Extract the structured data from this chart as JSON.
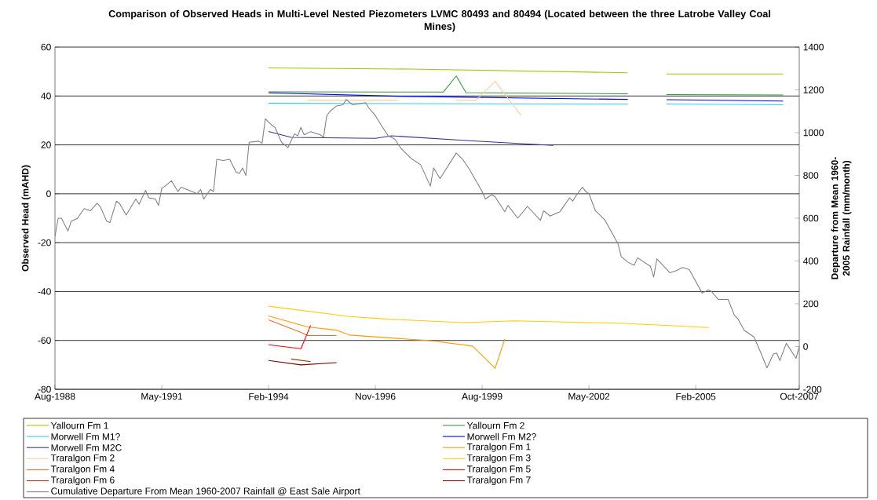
{
  "chart_data": {
    "type": "line",
    "title": "Comparison of Observed Heads in Multi-Level Nested Piezometers LVMC 80493 and 80494 (Located between the three Latrobe Valley Coal Mines)",
    "ylabel": "Observed Head (mAHD)",
    "y2label": "Departure from Mean 1960-2005 Rainfall (mm/month)",
    "xlim": [
      "1988-08",
      "2007-10"
    ],
    "xticks": [
      {
        "value": "1988-08",
        "label": "Aug-1988"
      },
      {
        "value": "1991-05",
        "label": "May-1991"
      },
      {
        "value": "1994-02",
        "label": "Feb-1994"
      },
      {
        "value": "1996-11",
        "label": "Nov-1996"
      },
      {
        "value": "1999-08",
        "label": "Aug-1999"
      },
      {
        "value": "2002-05",
        "label": "May-2002"
      },
      {
        "value": "2005-02",
        "label": "Feb-2005"
      },
      {
        "value": "2007-10",
        "label": "Oct-2007"
      }
    ],
    "ylim": [
      -80,
      60
    ],
    "yticks": [
      -80,
      -60,
      -40,
      -20,
      0,
      20,
      40,
      60
    ],
    "y2lim": [
      -200,
      1400
    ],
    "y2ticks": [
      -200,
      0,
      200,
      400,
      600,
      800,
      1000,
      1200,
      1400
    ],
    "grid": "y",
    "legend": "bottom",
    "series": [
      {
        "name": "Yallourn Fm 1",
        "color": "#99cc00",
        "x": [
          "1994-02",
          "1997-10",
          "2003-05",
          "2003-11",
          "2004-05",
          "2007-05"
        ],
        "values": [
          51.5,
          51,
          49.5,
          null,
          49,
          49
        ]
      },
      {
        "name": "Yallourn Fm 2",
        "color": "#339933",
        "x": [
          "1994-02",
          "1998-08",
          "1998-12",
          "1999-03",
          "2003-05",
          "2003-11",
          "2004-05",
          "2007-05"
        ],
        "values": [
          41.7,
          41.6,
          48.2,
          41.4,
          40.9,
          null,
          40.6,
          40.4
        ]
      },
      {
        "name": "Morwell Fm M1?",
        "color": "#33ccff",
        "x": [
          "1994-02",
          "2003-05",
          "2003-11",
          "2004-05",
          "2007-05"
        ],
        "values": [
          37,
          36.7,
          null,
          36.7,
          36.4
        ]
      },
      {
        "name": "Morwell Fm M2?",
        "color": "#0000ff",
        "x": [
          "1994-02",
          "1997-06",
          "2003-05",
          "2003-11",
          "2004-05",
          "2007-05"
        ],
        "values": [
          41.3,
          39.9,
          38.6,
          null,
          38.5,
          37.9
        ]
      },
      {
        "name": "Morwell Fm M2C",
        "color": "#333399",
        "x": [
          "1994-02",
          "1994-09",
          "1996-11",
          "1997-04",
          "1999-04",
          "2001-06"
        ],
        "values": [
          25.5,
          23.1,
          22.7,
          23.7,
          21.7,
          19.8
        ]
      },
      {
        "name": "Traralgon Fm 1",
        "color": "#ff9900",
        "x": [
          "1994-02",
          "1995-02",
          "1995-11",
          "1996-03",
          "1998-04",
          "1999-05",
          "1999-12",
          "2000-03"
        ],
        "values": [
          -50,
          -54.5,
          -55.8,
          -57.8,
          -60.1,
          -62.3,
          -71.4,
          -59.4
        ]
      },
      {
        "name": "Traralgon Fm 2",
        "color": "#ffcc99",
        "x": [
          "1995-02",
          "1997-06",
          "1998-03",
          "1998-12",
          "1999-06",
          "1999-12",
          "2000-08"
        ],
        "values": [
          38.2,
          38.2,
          null,
          38.2,
          38.2,
          46,
          32.1
        ]
      },
      {
        "name": "Traralgon Fm 3",
        "color": "#ffcc00",
        "x": [
          "1994-02",
          "1996-03",
          "1997-03",
          "1999-02",
          "2000-06",
          "2003-04",
          "2005-06"
        ],
        "values": [
          -46,
          -50.2,
          -51.3,
          -52.7,
          -52,
          -53,
          -54.7
        ]
      },
      {
        "name": "Traralgon Fm 4",
        "color": "#ff6633",
        "x": [
          "1994-02",
          "1994-12",
          "1995-02",
          "1995-11"
        ],
        "values": [
          -51.6,
          -56.7,
          -58,
          -58
        ]
      },
      {
        "name": "Traralgon Fm 5",
        "color": "#ff0000",
        "x": [
          "1994-02",
          "1994-12",
          "1995-03"
        ],
        "values": [
          -61.8,
          -63.4,
          -53.8
        ]
      },
      {
        "name": "Traralgon Fm 6",
        "color": "#993300",
        "x": [
          "1994-09",
          "1995-03"
        ],
        "values": [
          -67.6,
          -68.7
        ]
      },
      {
        "name": "Traralgon Fm 7",
        "color": "#800000",
        "x": [
          "1994-02",
          "1994-12",
          "1995-11"
        ],
        "values": [
          -68.2,
          -70,
          -69.1
        ]
      },
      {
        "name": "Cumulative Departure From Mean 1960-2007 Rainfall @ East Sale Airport",
        "color": "#808080",
        "axis": "y2",
        "x": [
          "1988-08",
          "1988-09",
          "1988-10",
          "1988-12",
          "1989-01",
          "1989-03",
          "1989-05",
          "1989-07",
          "1989-09",
          "1989-10",
          "1989-12",
          "1990-01",
          "1990-03",
          "1990-04",
          "1990-06",
          "1990-09",
          "1990-10",
          "1990-12",
          "1991-01",
          "1991-03",
          "1991-04",
          "1991-05",
          "1991-06",
          "1991-08",
          "1991-10",
          "1991-11",
          "1992-04",
          "1992-05",
          "1992-06",
          "1992-08",
          "1992-09",
          "1992-10",
          "1992-12",
          "1993-02",
          "1993-04",
          "1993-05",
          "1993-06",
          "1993-07",
          "1993-08",
          "1993-11",
          "1993-12",
          "1994-01",
          "1994-03",
          "1994-04",
          "1994-06",
          "1994-08",
          "1994-10",
          "1994-11",
          "1994-12",
          "1995-01",
          "1995-03",
          "1995-06",
          "1995-07",
          "1995-08",
          "1995-09",
          "1995-11",
          "1996-01",
          "1996-02",
          "1996-04",
          "1996-06",
          "1996-08",
          "1996-09",
          "1996-11",
          "1997-01",
          "1997-03",
          "1997-05",
          "1997-07",
          "1997-10",
          "1998-01",
          "1998-04",
          "1998-05",
          "1998-07",
          "1998-12",
          "1999-02",
          "1999-04",
          "1999-08",
          "1999-09",
          "1999-11",
          "1999-12",
          "2000-03",
          "2000-04",
          "2000-07",
          "2000-10",
          "2001-02",
          "2001-03",
          "2001-05",
          "2001-08",
          "2001-11",
          "2001-12",
          "2002-01",
          "2002-03",
          "2002-04",
          "2002-05",
          "2002-07",
          "2002-10",
          "2003-02",
          "2003-03",
          "2003-05",
          "2003-07",
          "2003-08",
          "2003-12",
          "2004-01",
          "2004-02",
          "2004-06",
          "2004-08",
          "2004-10",
          "2004-12",
          "2005-04",
          "2005-06",
          "2005-07",
          "2005-09",
          "2005-12",
          "2006-02",
          "2006-03",
          "2006-05",
          "2006-08",
          "2006-10",
          "2006-12",
          "2007-02",
          "2007-03",
          "2007-04",
          "2007-06",
          "2007-09",
          "2007-10"
        ],
        "values": [
          515,
          600,
          600,
          540,
          585,
          600,
          645,
          635,
          670,
          655,
          585,
          580,
          680,
          668,
          615,
          690,
          665,
          730,
          695,
          690,
          660,
          740,
          750,
          775,
          725,
          745,
          715,
          735,
          690,
          735,
          725,
          875,
          870,
          875,
          815,
          810,
          835,
          800,
          955,
          960,
          950,
          1065,
          1035,
          1025,
          955,
          930,
          995,
          985,
          1025,
          990,
          1005,
          990,
          980,
          1080,
          1100,
          1125,
          1130,
          1155,
          1130,
          1135,
          1140,
          1115,
          1080,
          1030,
          985,
          970,
          925,
          880,
          850,
          750,
          835,
          785,
          905,
          875,
          830,
          725,
          690,
          710,
          700,
          630,
          660,
          600,
          655,
          590,
          635,
          610,
          630,
          695,
          680,
          705,
          745,
          725,
          715,
          635,
          590,
          480,
          420,
          395,
          380,
          415,
          375,
          325,
          410,
          345,
          355,
          370,
          360,
          250,
          265,
          255,
          220,
          220,
          145,
          130,
          75,
          45,
          -25,
          -100,
          -35,
          -30,
          -65,
          15,
          -55,
          0
        ]
      }
    ]
  }
}
